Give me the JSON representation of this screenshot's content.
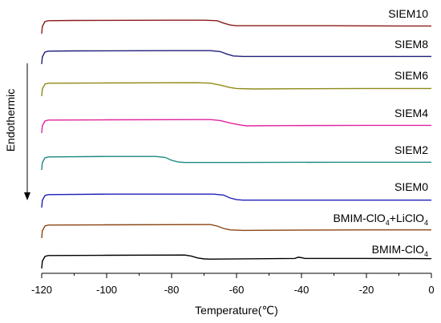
{
  "chart_data": {
    "type": "line",
    "title": "",
    "xlabel": "Temperature(℃)",
    "ylabel": "Endothermic",
    "xlim": [
      -120,
      0
    ],
    "xticks": [
      -120,
      -100,
      -80,
      -60,
      -40,
      -20,
      0
    ],
    "grid": false,
    "legend": "labels at right end of each curve",
    "y_axis_ticks": "none",
    "series": [
      {
        "name": "SIEM10",
        "color": "#8B1A1A",
        "points": [
          [
            -120,
            -1.5
          ],
          [
            -119.8,
            0.0
          ],
          [
            -119,
            1.0
          ],
          [
            -118,
            1.2
          ],
          [
            -110,
            1.25
          ],
          [
            -80,
            1.3
          ],
          [
            -70,
            1.3
          ],
          [
            -66,
            1.2
          ],
          [
            -64,
            0.7
          ],
          [
            -62,
            0.3
          ],
          [
            -60,
            0.15
          ],
          [
            -50,
            0.15
          ],
          [
            -30,
            0.15
          ],
          [
            -10,
            0.1
          ],
          [
            0,
            0.1
          ]
        ]
      },
      {
        "name": "SIEM8",
        "color": "#1F1F7A",
        "points": [
          [
            -120,
            -1.5
          ],
          [
            -119.8,
            0.0
          ],
          [
            -119,
            1.0
          ],
          [
            -118,
            1.2
          ],
          [
            -110,
            1.25
          ],
          [
            -80,
            1.3
          ],
          [
            -68,
            1.3
          ],
          [
            -65,
            1.1
          ],
          [
            -63,
            0.6
          ],
          [
            -61,
            0.2
          ],
          [
            -58,
            0.1
          ],
          [
            -40,
            0.1
          ],
          [
            -20,
            0.1
          ],
          [
            0,
            0.1
          ]
        ]
      },
      {
        "name": "SIEM6",
        "color": "#8E8A17",
        "points": [
          [
            -120,
            -1.5
          ],
          [
            -119.8,
            0.0
          ],
          [
            -119,
            1.0
          ],
          [
            -118,
            1.2
          ],
          [
            -100,
            1.25
          ],
          [
            -72,
            1.3
          ],
          [
            -68,
            1.2
          ],
          [
            -65,
            0.8
          ],
          [
            -62,
            0.3
          ],
          [
            -60,
            0.1
          ],
          [
            -55,
            0.0
          ],
          [
            -40,
            0.05
          ],
          [
            -20,
            0.1
          ],
          [
            0,
            0.1
          ]
        ]
      },
      {
        "name": "SIEM4",
        "color": "#E0249F",
        "points": [
          [
            -120,
            -1.5
          ],
          [
            -119.8,
            0.0
          ],
          [
            -119,
            1.0
          ],
          [
            -118,
            1.2
          ],
          [
            -100,
            1.25
          ],
          [
            -68,
            1.3
          ],
          [
            -65,
            1.1
          ],
          [
            -62,
            0.6
          ],
          [
            -59,
            0.2
          ],
          [
            -57,
            0.0
          ],
          [
            -45,
            0.05
          ],
          [
            -20,
            0.1
          ],
          [
            0,
            0.1
          ]
        ]
      },
      {
        "name": "SIEM2",
        "color": "#1C8A80",
        "points": [
          [
            -120,
            -1.5
          ],
          [
            -119.8,
            0.0
          ],
          [
            -119,
            1.0
          ],
          [
            -118,
            1.2
          ],
          [
            -100,
            1.3
          ],
          [
            -85,
            1.3
          ],
          [
            -82,
            1.1
          ],
          [
            -80,
            0.5
          ],
          [
            -78,
            0.15
          ],
          [
            -76,
            0.05
          ],
          [
            -60,
            0.05
          ],
          [
            -30,
            0.1
          ],
          [
            0,
            0.1
          ]
        ]
      },
      {
        "name": "SIEM0",
        "color": "#2020B8",
        "points": [
          [
            -120,
            -1.5
          ],
          [
            -119.8,
            0.0
          ],
          [
            -119,
            1.0
          ],
          [
            -118,
            1.2
          ],
          [
            -100,
            1.3
          ],
          [
            -67,
            1.3
          ],
          [
            -64,
            1.1
          ],
          [
            -62,
            0.5
          ],
          [
            -60,
            0.15
          ],
          [
            -58,
            0.05
          ],
          [
            -40,
            0.05
          ],
          [
            -20,
            0.05
          ],
          [
            0,
            0.05
          ]
        ]
      },
      {
        "name": "BMIM-ClO4+LiClO4",
        "label_base": "BMIM-ClO",
        "label_sub": "4",
        "label_mid": "+LiClO",
        "label_sub2": "4",
        "color": "#8B4513",
        "points": [
          [
            -120,
            -1.5
          ],
          [
            -119.8,
            0.0
          ],
          [
            -119,
            1.0
          ],
          [
            -118,
            1.2
          ],
          [
            -100,
            1.25
          ],
          [
            -68,
            1.3
          ],
          [
            -66,
            1.0
          ],
          [
            -64,
            0.5
          ],
          [
            -62,
            0.2
          ],
          [
            -58,
            0.1
          ],
          [
            -40,
            0.15
          ],
          [
            -20,
            0.2
          ],
          [
            0,
            0.2
          ]
        ]
      },
      {
        "name": "BMIM-ClO4",
        "label_base": "BMIM-ClO",
        "label_sub": "4",
        "color": "#000000",
        "points": [
          [
            -120,
            -1.5
          ],
          [
            -119.8,
            0.0
          ],
          [
            -119,
            1.0
          ],
          [
            -118,
            1.2
          ],
          [
            -100,
            1.25
          ],
          [
            -76,
            1.3
          ],
          [
            -74,
            1.1
          ],
          [
            -72,
            0.7
          ],
          [
            -70,
            0.5
          ],
          [
            -68,
            0.45
          ],
          [
            -50,
            0.55
          ],
          [
            -42,
            0.6
          ],
          [
            -41,
            0.85
          ],
          [
            -40,
            0.75
          ],
          [
            -39,
            0.6
          ],
          [
            -20,
            0.6
          ],
          [
            0,
            0.55
          ]
        ]
      }
    ]
  }
}
